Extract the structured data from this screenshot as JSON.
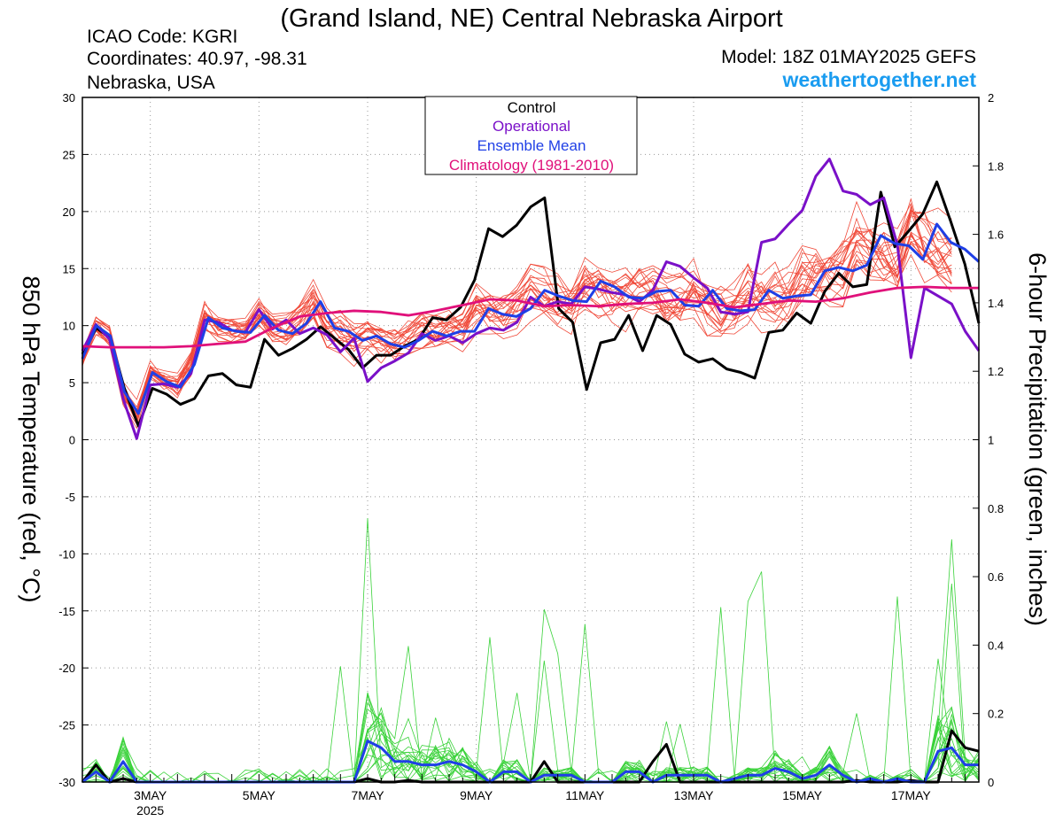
{
  "header": {
    "title": "(Grand Island, NE) Central Nebraska Airport",
    "icao": "ICAO Code: KGRI",
    "coords": "Coordinates: 40.97, -98.31",
    "region": "Nebraska, USA",
    "model": "Model: 18Z 01MAY2025 GEFS",
    "site": "weathertogether.net"
  },
  "colors": {
    "members_temp": "#f04a3a",
    "members_precip": "#3ad23a",
    "control": "#000000",
    "operational": "#7a10c8",
    "mean": "#1f3fe6",
    "climo": "#e0107a",
    "site": "#1a9cf0"
  },
  "legend": {
    "control": "Control",
    "operational": "Operational",
    "mean": "Ensemble Mean",
    "climo": "Climatology (1981-2010)"
  },
  "chart_data": {
    "type": "line",
    "title": "(Grand Island, NE) Central Nebraska Airport",
    "ylabel_left": "850 hPa Temperature (red, °C)",
    "ylabel_right": "6-hour Precipitation (green, inches)",
    "xlim": [
      0,
      66
    ],
    "ylim_left": [
      -30,
      30
    ],
    "ylim_right": [
      0,
      2
    ],
    "grid": true,
    "legend_position": "top-center",
    "x_ticks": [
      {
        "x": 5,
        "label": "3MAY",
        "sub": "2025"
      },
      {
        "x": 13,
        "label": "5MAY"
      },
      {
        "x": 21,
        "label": "7MAY"
      },
      {
        "x": 29,
        "label": "9MAY"
      },
      {
        "x": 37,
        "label": "11MAY"
      },
      {
        "x": 45,
        "label": "13MAY"
      },
      {
        "x": 53,
        "label": "15MAY"
      },
      {
        "x": 61,
        "label": "17MAY"
      }
    ],
    "y_ticks_left": [
      "-30",
      "-25",
      "-20",
      "-15",
      "-10",
      "-5",
      "0",
      "5",
      "10",
      "15",
      "20",
      "25",
      "30"
    ],
    "y_ticks_right": [
      "0",
      "0.2",
      "0.4",
      "0.6",
      "0.8",
      "1",
      "1.2",
      "1.4",
      "1.6",
      "1.8",
      "2"
    ],
    "series": [
      {
        "name": "Control",
        "axis": "left",
        "values": [
          7.5,
          9.8,
          8.9,
          4.5,
          1.2,
          4.5,
          4.0,
          3.1,
          3.6,
          5.6,
          5.8,
          4.8,
          4.6,
          8.8,
          7.4,
          8.0,
          8.8,
          9.9,
          8.9,
          7.9,
          6.3,
          7.4,
          7.4,
          8.2,
          8.8,
          10.7,
          10.5,
          11.6,
          14.0,
          18.5,
          17.8,
          18.8,
          20.4,
          21.2,
          11.5,
          10.3,
          4.4,
          8.5,
          8.8,
          10.9,
          7.8,
          10.9,
          10.1,
          7.5,
          6.8,
          7.1,
          6.2,
          5.9,
          5.4,
          9.4,
          9.6,
          11.1,
          10.2,
          13.0,
          14.6,
          13.4,
          13.6,
          21.7,
          16.9,
          18.3,
          19.8,
          22.6,
          19.1,
          15.4,
          10.2
        ]
      },
      {
        "name": "Operational",
        "axis": "left",
        "values": [
          7.8,
          10.1,
          8.8,
          3.6,
          0.1,
          4.8,
          4.9,
          4.6,
          5.8,
          10.5,
          10.3,
          9.6,
          9.4,
          11.4,
          9.7,
          10.5,
          9.3,
          9.8,
          9.2,
          7.7,
          8.9,
          5.1,
          6.3,
          6.9,
          7.6,
          9.3,
          8.7,
          9.1,
          8.5,
          9.3,
          9.8,
          9.6,
          10.3,
          12.5,
          11.7,
          12.1,
          11.9,
          13.4,
          13.2,
          12.9,
          12.7,
          12.1,
          13.1,
          15.6,
          15.2,
          14.2,
          13.3,
          11.2,
          11.0,
          11.2,
          17.3,
          17.6,
          18.9,
          20.1,
          23.1,
          24.6,
          21.8,
          21.5,
          20.6,
          21.2,
          17.1,
          7.2,
          13.3,
          12.6,
          11.9,
          9.5,
          7.8
        ]
      },
      {
        "name": "Ensemble Mean",
        "axis": "left",
        "values": [
          7.1,
          10.0,
          9.1,
          4.2,
          2.3,
          5.9,
          5.1,
          4.6,
          6.6,
          10.7,
          9.8,
          9.5,
          9.4,
          10.9,
          9.6,
          9.3,
          10.2,
          12.1,
          9.8,
          9.5,
          8.7,
          9.1,
          8.4,
          8.1,
          8.7,
          9.5,
          9.1,
          9.5,
          9.5,
          11.5,
          11.0,
          10.8,
          11.5,
          13.1,
          12.6,
          12.2,
          12.1,
          13.9,
          13.4,
          12.5,
          12.4,
          13.0,
          13.1,
          11.8,
          11.7,
          13.1,
          11.5,
          11.3,
          11.4,
          13.1,
          12.4,
          12.6,
          12.7,
          14.8,
          15.1,
          14.8,
          15.3,
          17.9,
          17.2,
          17.0,
          15.8,
          18.9,
          17.3,
          16.7,
          15.6
        ]
      },
      {
        "name": "Climatology (1981-2010)",
        "axis": "left",
        "values": [
          8.2,
          8.1,
          8.1,
          8.1,
          8.2,
          8.4,
          8.6,
          9.8,
          10.8,
          11.1,
          11.3,
          11.2,
          10.9,
          11.3,
          11.8,
          12.3,
          12.2,
          11.7,
          11.8,
          11.7,
          11.9,
          12.0,
          12.3,
          12.0,
          11.6,
          11.9,
          12.2,
          12.1,
          12.4,
          12.9,
          13.3,
          13.4,
          13.3,
          13.3
        ]
      }
    ],
    "precip_series": [
      {
        "name": "Control",
        "axis": "right",
        "values": [
          0,
          0.05,
          0,
          0.01,
          0,
          0,
          0,
          0,
          0,
          0,
          0,
          0,
          0,
          0,
          0,
          0,
          0,
          0,
          0,
          0,
          0,
          0.01,
          0,
          0,
          0.005,
          0,
          0,
          0,
          0,
          0,
          0,
          0,
          0,
          0,
          0.06,
          0,
          0,
          0,
          0,
          0,
          0,
          0,
          0.06,
          0.11,
          0,
          0,
          0,
          0,
          0,
          0,
          0,
          0,
          0,
          0,
          0,
          0,
          0,
          0.005,
          0,
          0,
          0,
          0.005,
          0,
          0,
          0.15,
          0.1,
          0.09
        ]
      },
      {
        "name": "Ensemble Mean",
        "axis": "right",
        "values": [
          0,
          0.03,
          0,
          0.06,
          0,
          0,
          0,
          0,
          0,
          0,
          0,
          0,
          0,
          0,
          0,
          0,
          0,
          0,
          0,
          0,
          0,
          0.12,
          0.1,
          0.06,
          0.06,
          0.05,
          0.05,
          0.06,
          0.05,
          0.03,
          0,
          0.03,
          0.03,
          0,
          0.02,
          0.02,
          0.02,
          0,
          0,
          0,
          0.03,
          0.03,
          0,
          0.02,
          0.02,
          0.02,
          0.02,
          0,
          0.01,
          0.02,
          0.02,
          0.04,
          0.03,
          0.01,
          0.02,
          0.05,
          0.02,
          0,
          0.01,
          0,
          0.01,
          0,
          0,
          0.09,
          0.1,
          0.05,
          0.05
        ]
      }
    ]
  }
}
